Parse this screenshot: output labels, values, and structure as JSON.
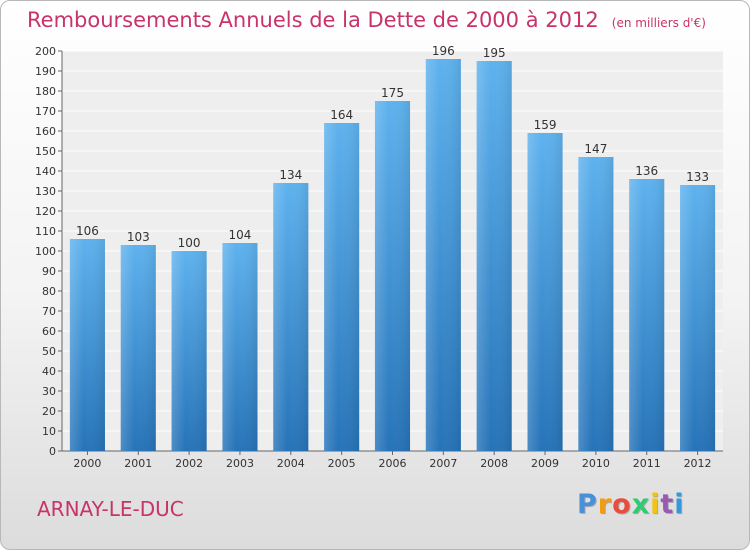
{
  "chart_data": {
    "type": "bar",
    "title": "Remboursements Annuels de la Dette de 2000 à 2012",
    "subtitle": "(en milliers d'€)",
    "categories": [
      "2000",
      "2001",
      "2002",
      "2003",
      "2004",
      "2005",
      "2006",
      "2007",
      "2008",
      "2009",
      "2010",
      "2011",
      "2012"
    ],
    "values": [
      106,
      103,
      100,
      104,
      134,
      164,
      175,
      196,
      195,
      159,
      147,
      136,
      133
    ],
    "value_labels": [
      "106",
      "103",
      "100",
      "104",
      "134",
      "164",
      "175",
      "196",
      "195",
      "159",
      "147",
      "136",
      "133"
    ],
    "ylim": [
      0,
      200
    ],
    "yticks": [
      "0",
      "10",
      "20",
      "30",
      "40",
      "50",
      "60",
      "70",
      "80",
      "90",
      "100",
      "110",
      "120",
      "130",
      "140",
      "150",
      "160",
      "170",
      "180",
      "190",
      "200"
    ],
    "grid": true,
    "bar_color": "#3a8fd6"
  },
  "location": "ARNAY-LE-DUC",
  "brand": {
    "letters": [
      "P",
      "r",
      "o",
      "x",
      "i",
      "t",
      "i"
    ],
    "colors": [
      "#4a90d9",
      "#f39c12",
      "#e74c3c",
      "#2ecc71",
      "#f1c40f",
      "#9b59b6",
      "#3498db"
    ]
  }
}
